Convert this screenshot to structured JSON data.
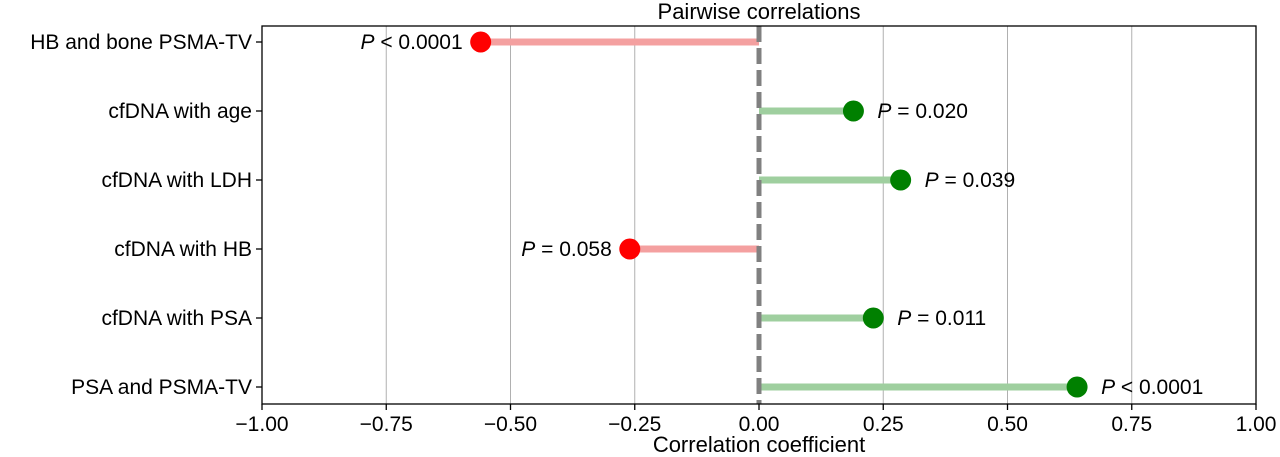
{
  "chart_data": {
    "type": "lollipop",
    "title": "Pairwise correlations",
    "xlabel": "Correlation coefficient",
    "ylabel": "",
    "xlim": [
      -1.0,
      1.0
    ],
    "xticks": [
      -1.0,
      -0.75,
      -0.5,
      -0.25,
      0.0,
      0.25,
      0.5,
      0.75,
      1.0
    ],
    "xtick_labels": [
      "−1.00",
      "−0.75",
      "−0.50",
      "−0.25",
      "0.00",
      "0.25",
      "0.50",
      "0.75",
      "1.00"
    ],
    "grid": "vertical",
    "reference_line": {
      "x": 0.0,
      "style": "dashed",
      "color": "#808080"
    },
    "colors": {
      "negative_marker": "#ff0000",
      "negative_stem": "#f4a0a0",
      "positive_marker": "#008000",
      "positive_stem": "#9fcf9f",
      "grid": "#b0b0b0"
    },
    "items": [
      {
        "label": "HB and bone PSMA-TV",
        "value": -0.56,
        "p_prefix": "P",
        "p_text": " < 0.0001"
      },
      {
        "label": "cfDNA with age",
        "value": 0.19,
        "p_prefix": "P",
        "p_text": " = 0.020"
      },
      {
        "label": "cfDNA with LDH",
        "value": 0.285,
        "p_prefix": "P",
        "p_text": " = 0.039"
      },
      {
        "label": "cfDNA with HB",
        "value": -0.26,
        "p_prefix": "P",
        "p_text": " = 0.058"
      },
      {
        "label": "cfDNA with PSA",
        "value": 0.23,
        "p_prefix": "P",
        "p_text": " = 0.011"
      },
      {
        "label": "PSA and PSMA-TV",
        "value": 0.64,
        "p_prefix": "P",
        "p_text": " < 0.0001"
      }
    ]
  }
}
